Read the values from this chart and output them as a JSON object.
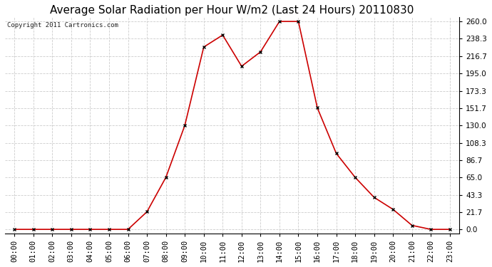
{
  "title": "Average Solar Radiation per Hour W/m2 (Last 24 Hours) 20110830",
  "copyright": "Copyright 2011 Cartronics.com",
  "hours": [
    "00:00",
    "01:00",
    "02:00",
    "03:00",
    "04:00",
    "05:00",
    "06:00",
    "07:00",
    "08:00",
    "09:00",
    "10:00",
    "11:00",
    "12:00",
    "13:00",
    "14:00",
    "15:00",
    "16:00",
    "17:00",
    "18:00",
    "19:00",
    "20:00",
    "21:00",
    "22:00",
    "23:00"
  ],
  "values": [
    0,
    0,
    0,
    0,
    0,
    0,
    0,
    22,
    65,
    130,
    228,
    243,
    204,
    222,
    260,
    260,
    152,
    95,
    65,
    40,
    25,
    5,
    0,
    0
  ],
  "line_color": "#cc0000",
  "marker": "x",
  "marker_color": "#000000",
  "bg_color": "#ffffff",
  "grid_color": "#cccccc",
  "ylim_min": -5,
  "ylim_max": 265,
  "yticks": [
    0.0,
    21.7,
    43.3,
    65.0,
    86.7,
    108.3,
    130.0,
    151.7,
    173.3,
    195.0,
    216.7,
    238.3,
    260.0
  ],
  "title_fontsize": 11,
  "copyright_fontsize": 6.5,
  "tick_fontsize": 7.5,
  "axis_bg_color": "#ffffff"
}
